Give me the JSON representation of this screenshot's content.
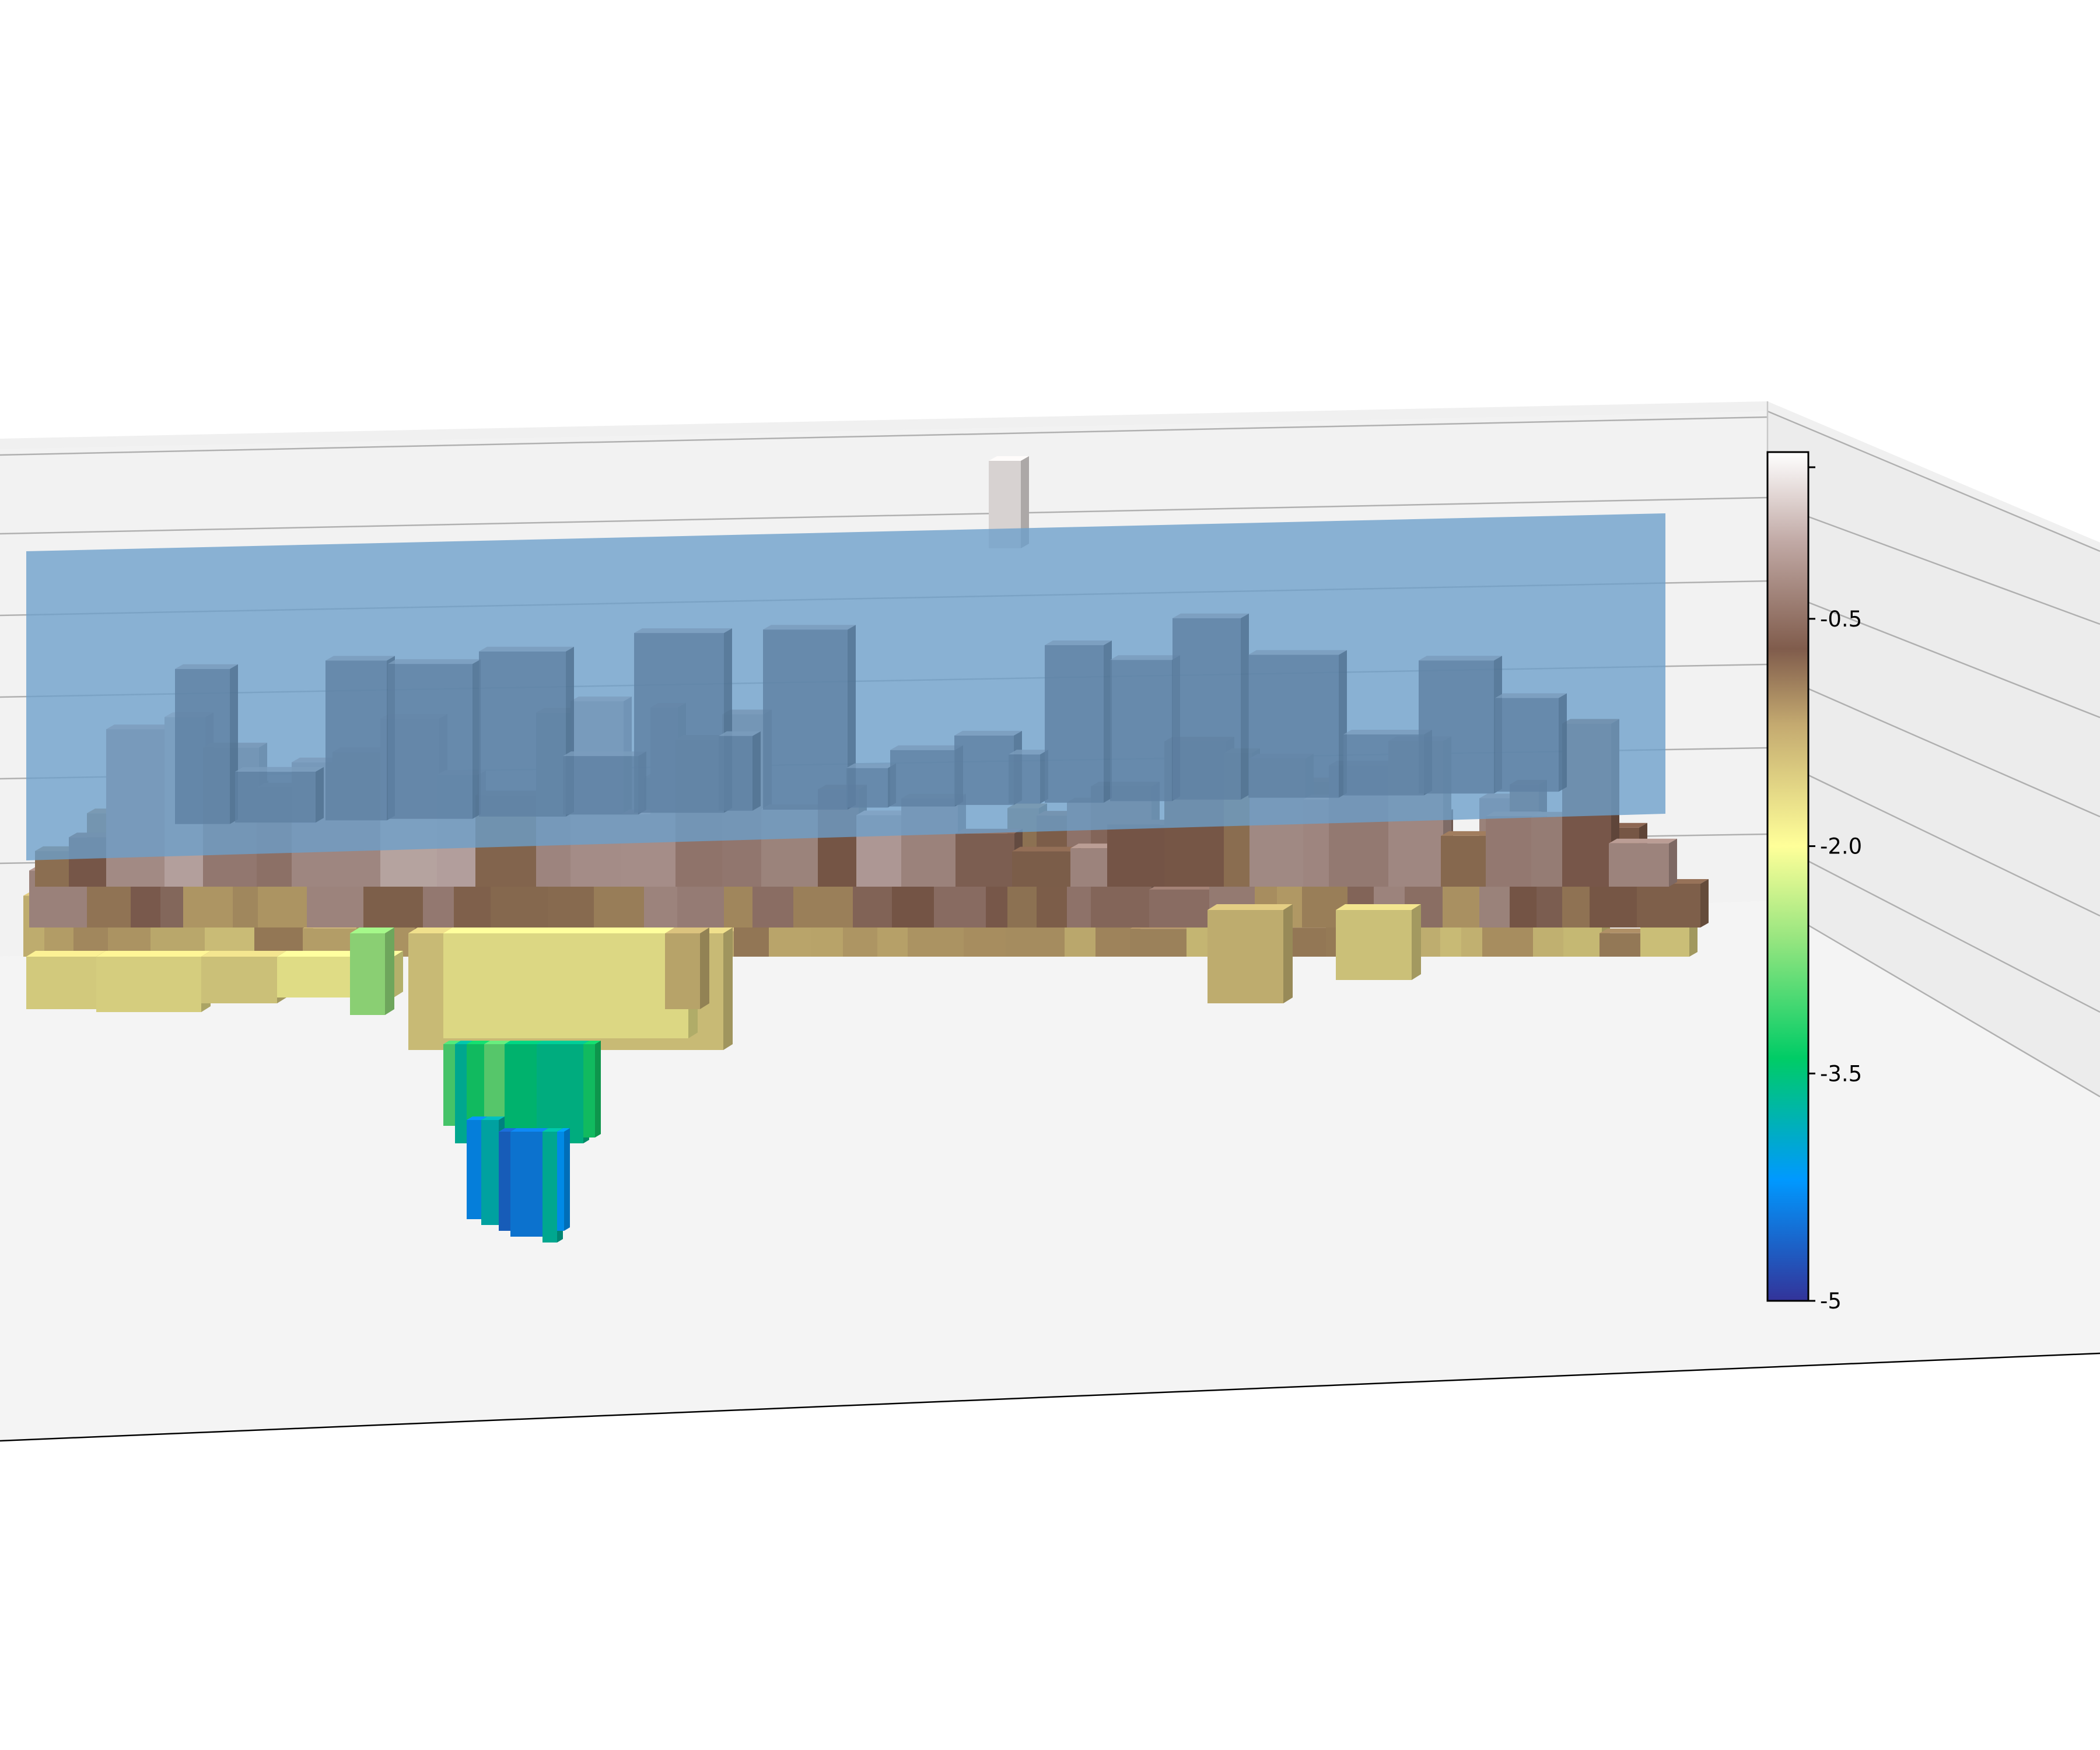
{
  "chart_data": {
    "type": "3d-bar",
    "title": "",
    "description_colormap": "terrain",
    "surface_overlay_color": "#6c9fcb",
    "colorbar": {
      "min": -5,
      "max": 0.6,
      "ticks": [
        {
          "value": 0.5,
          "label": ""
        },
        {
          "value": -0.5,
          "label": "-0.5"
        },
        {
          "value": -2.0,
          "label": "-2.0"
        },
        {
          "value": -3.5,
          "label": "-3.5"
        },
        {
          "value": -5,
          "label": "-5"
        }
      ],
      "stops": [
        {
          "value": -5.0,
          "color": "#333399"
        },
        {
          "value": -4.2,
          "color": "#0099ff"
        },
        {
          "value": -3.4,
          "color": "#00cc66"
        },
        {
          "value": -2.6,
          "color": "#99e680"
        },
        {
          "value": -2.0,
          "color": "#ffff99"
        },
        {
          "value": -1.2,
          "color": "#c4aa70"
        },
        {
          "value": -0.7,
          "color": "#805c4c"
        },
        {
          "value": 0.0,
          "color": "#c0a8a4"
        },
        {
          "value": 0.6,
          "color": "#ffffff"
        }
      ]
    },
    "grid": true
  }
}
